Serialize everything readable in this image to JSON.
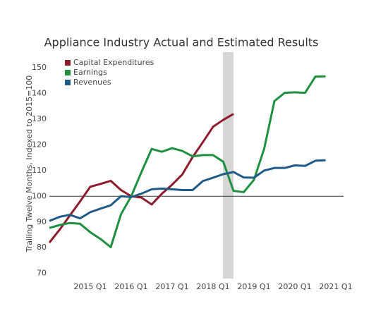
{
  "chart_data": {
    "type": "line",
    "title": "Appliance Industry Actual and Estimated Results",
    "y_label": "Trailing Twelve Months, Indexed to 2015=100",
    "categories": [
      null,
      null,
      null,
      null,
      "2015 Q1",
      null,
      null,
      null,
      "2016 Q1",
      null,
      null,
      null,
      "2017 Q1",
      null,
      null,
      null,
      "2018 Q1",
      null,
      null,
      null,
      "2019 Q1",
      null,
      null,
      null,
      "2020 Q1",
      null,
      null,
      null,
      "2021 Q1"
    ],
    "series": [
      {
        "name": "Capital Expenditures",
        "color": "#8e1c2a",
        "values": [
          82,
          87,
          92.5,
          98,
          103.7,
          104.8,
          106,
          102.4,
          100,
          99.5,
          96.8,
          101,
          104.5,
          108.5,
          115.2,
          121,
          127,
          129.7,
          132,
          null,
          null,
          null,
          null,
          null,
          null,
          null,
          null,
          null,
          null
        ]
      },
      {
        "name": "Earnings",
        "color": "#1e9040",
        "values": [
          87.7,
          88.8,
          89.6,
          89.3,
          86,
          83.4,
          80.2,
          93,
          100,
          109.4,
          118.4,
          117.3,
          118.7,
          117.6,
          115.5,
          116,
          116,
          113.4,
          102.1,
          101.6,
          106.4,
          118.5,
          137,
          140.2,
          140.4,
          140.2,
          146.5,
          146.6,
          null
        ]
      },
      {
        "name": "Revenues",
        "color": "#1f5b86",
        "values": [
          90.4,
          92,
          92.8,
          91.4,
          93.8,
          95.2,
          96.5,
          100,
          99.7,
          101,
          102.7,
          103,
          102.7,
          102.4,
          102.4,
          105.9,
          107.2,
          108.6,
          109.4,
          107.3,
          107.2,
          110,
          111,
          111,
          112,
          111.8,
          113.8,
          114,
          null
        ]
      }
    ],
    "ylim": [
      68,
      156
    ],
    "yticks": [
      70,
      80,
      90,
      100,
      110,
      120,
      130,
      140,
      150
    ],
    "hline": 100,
    "legend": "top-left"
  }
}
